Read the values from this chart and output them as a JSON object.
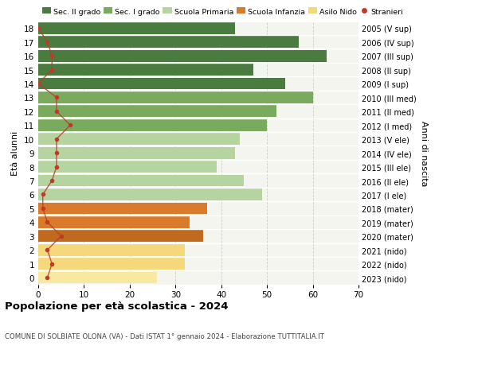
{
  "ages": [
    18,
    17,
    16,
    15,
    14,
    13,
    12,
    11,
    10,
    9,
    8,
    7,
    6,
    5,
    4,
    3,
    2,
    1,
    0
  ],
  "values": [
    43,
    57,
    63,
    47,
    54,
    60,
    52,
    50,
    44,
    43,
    39,
    45,
    49,
    37,
    33,
    36,
    32,
    32,
    26
  ],
  "stranieri": [
    0,
    2,
    3,
    3,
    0,
    4,
    4,
    7,
    4,
    4,
    4,
    3,
    1,
    1,
    2,
    5,
    2,
    3,
    2
  ],
  "right_labels": [
    "2005 (V sup)",
    "2006 (IV sup)",
    "2007 (III sup)",
    "2008 (II sup)",
    "2009 (I sup)",
    "2010 (III med)",
    "2011 (II med)",
    "2012 (I med)",
    "2013 (V ele)",
    "2014 (IV ele)",
    "2015 (III ele)",
    "2016 (II ele)",
    "2017 (I ele)",
    "2018 (mater)",
    "2019 (mater)",
    "2020 (mater)",
    "2021 (nido)",
    "2022 (nido)",
    "2023 (nido)"
  ],
  "bar_colors": [
    "#4a7c3f",
    "#4a7c3f",
    "#4a7c3f",
    "#4a7c3f",
    "#4a7c3f",
    "#7aaa5e",
    "#7aaa5e",
    "#7aaa5e",
    "#b5d4a0",
    "#b5d4a0",
    "#b5d4a0",
    "#b5d4a0",
    "#b5d4a0",
    "#d97b2a",
    "#d97b2a",
    "#c06a20",
    "#f5d87a",
    "#f5d87a",
    "#f9e9a0"
  ],
  "legend_labels": [
    "Sec. II grado",
    "Sec. I grado",
    "Scuola Primaria",
    "Scuola Infanzia",
    "Asilo Nido",
    "Stranieri"
  ],
  "legend_colors": [
    "#4a7c3f",
    "#7aaa5e",
    "#b5d4a0",
    "#d97b2a",
    "#f5d87a",
    "#c0392b"
  ],
  "title": "Popolazione per età scolastica - 2024",
  "subtitle": "COMUNE DI SOLBIATE OLONA (VA) - Dati ISTAT 1° gennaio 2024 - Elaborazione TUTTITALIA.IT",
  "ylabel_left": "Età alunni",
  "ylabel_right": "Anni di nascita",
  "xlim": [
    0,
    70
  ],
  "bg_color": "#ffffff",
  "plot_bg_color": "#f5f5f0",
  "bar_height": 0.85,
  "stranieri_color": "#c0392b",
  "grid_color": "#cccccc",
  "xticks": [
    0,
    10,
    20,
    30,
    40,
    50,
    60,
    70
  ]
}
